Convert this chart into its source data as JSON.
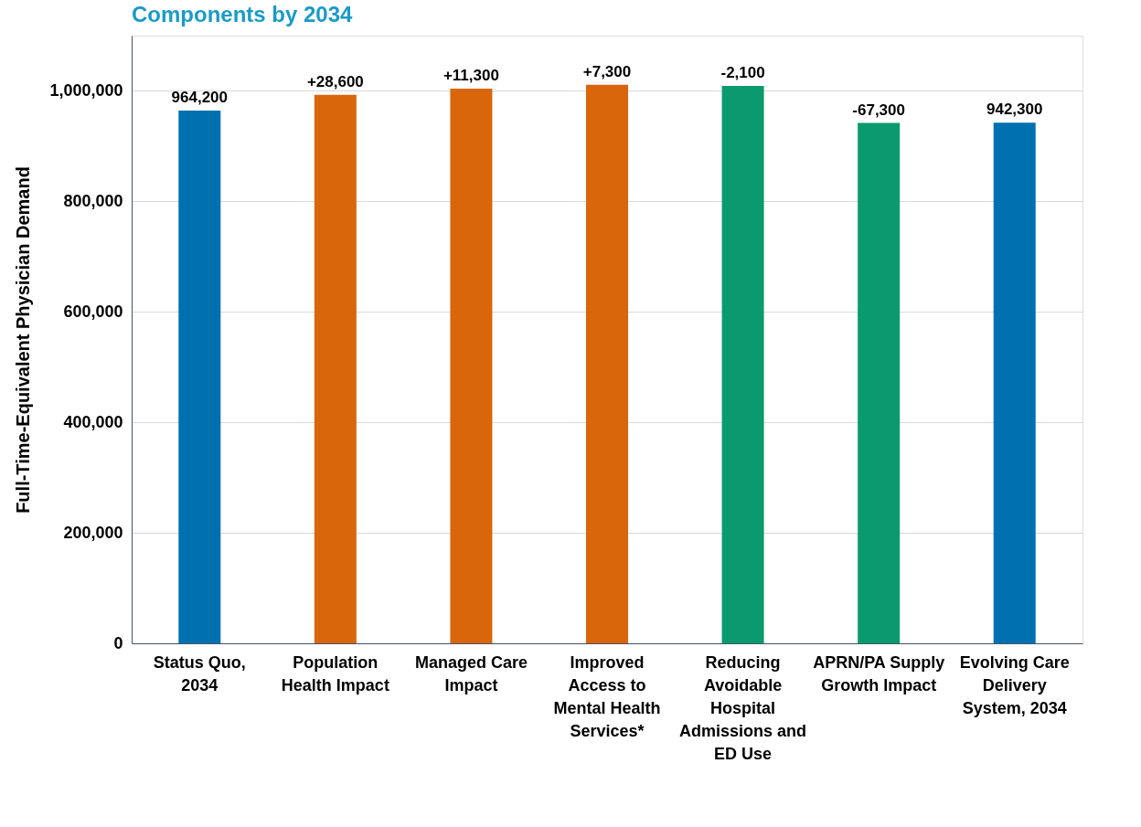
{
  "chart_data": {
    "type": "bar",
    "title": "Components by 2034",
    "ylabel": "Full-Time-Equivalent Physician Demand",
    "categories": [
      "Status Quo, 2034",
      "Population Health Impact",
      "Managed Care Impact",
      "Improved Access to Mental Health Services*",
      "Reducing Avoidable Hospital Admissions and ED Use",
      "APRN/PA Supply Growth Impact",
      "Evolving Care Delivery System, 2034"
    ],
    "values": [
      964200,
      993000,
      1004000,
      1011000,
      1009000,
      942000,
      942300
    ],
    "colors": [
      "#0070b0",
      "#d9660b",
      "#d9660b",
      "#d9660b",
      "#0a9a6e",
      "#0a9a6e",
      "#0070b0"
    ],
    "value_labels": [
      "964,200",
      null,
      null,
      null,
      null,
      null,
      "942,300"
    ],
    "annotations": [
      {
        "text": "+28,600",
        "x": "Population Health Impact",
        "y": 993000
      },
      {
        "text": "+11,300",
        "x": "Managed Care Impact",
        "y": 1004000
      },
      {
        "text": "+7,300",
        "x": "Improved Access to Mental Health Services*",
        "y": 1011000
      },
      {
        "text": "-2,100",
        "x": "Reducing Avoidable Hospital Admissions and ED Use",
        "y": 1009000
      },
      {
        "text": "-67,300",
        "x": "APRN/PA Supply Growth Impact",
        "y": 942000
      }
    ],
    "ylim": [
      0,
      1100000
    ],
    "yticks": [
      {
        "value": 0,
        "label": "0"
      },
      {
        "value": 200000,
        "label": "200,000"
      },
      {
        "value": 400000,
        "label": "400,000"
      },
      {
        "value": 600000,
        "label": "600,000"
      },
      {
        "value": 800000,
        "label": "800,000"
      },
      {
        "value": 1000000,
        "label": "1,000,000"
      }
    ],
    "grid": "y"
  }
}
